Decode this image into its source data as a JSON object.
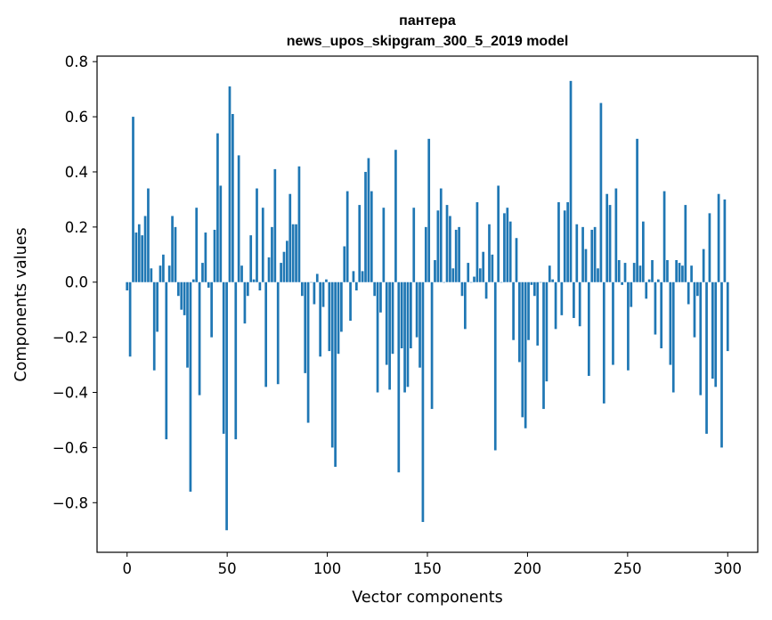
{
  "chart_data": {
    "type": "bar",
    "title_line1": "пантера",
    "title_line2": "news_upos_skipgram_300_5_2019 model",
    "xlabel": "Vector components",
    "ylabel": "Components values",
    "xlim": [
      -15,
      315
    ],
    "ylim": [
      -0.98,
      0.82
    ],
    "xticks": [
      0,
      50,
      100,
      150,
      200,
      250,
      300
    ],
    "xtick_labels": [
      "0",
      "50",
      "100",
      "150",
      "200",
      "250",
      "300"
    ],
    "yticks": [
      -0.8,
      -0.6,
      -0.4,
      -0.2,
      0.0,
      0.2,
      0.4,
      0.6,
      0.8
    ],
    "ytick_labels": [
      "−0.8",
      "−0.6",
      "−0.4",
      "−0.2",
      "0.0",
      "0.2",
      "0.4",
      "0.6",
      "0.8"
    ],
    "bar_color": "#1f77b4",
    "values": [
      -0.03,
      -0.27,
      0.6,
      0.18,
      0.21,
      0.17,
      0.24,
      0.34,
      0.05,
      -0.32,
      -0.18,
      0.06,
      0.1,
      -0.57,
      0.06,
      0.24,
      0.2,
      -0.05,
      -0.1,
      -0.12,
      -0.31,
      -0.76,
      0.01,
      0.27,
      -0.41,
      0.07,
      0.18,
      -0.02,
      -0.2,
      0.19,
      0.54,
      0.35,
      -0.55,
      -0.9,
      0.71,
      0.61,
      -0.57,
      0.46,
      0.06,
      -0.15,
      -0.05,
      0.17,
      0.01,
      0.34,
      -0.03,
      0.27,
      -0.38,
      0.09,
      0.2,
      0.41,
      -0.37,
      0.07,
      0.11,
      0.15,
      0.32,
      0.21,
      0.21,
      0.42,
      -0.05,
      -0.33,
      -0.51,
      0.0,
      -0.08,
      0.03,
      -0.27,
      -0.09,
      0.01,
      -0.25,
      -0.6,
      -0.67,
      -0.26,
      -0.18,
      0.13,
      0.33,
      -0.14,
      0.04,
      -0.03,
      0.28,
      0.04,
      0.4,
      0.45,
      0.33,
      -0.05,
      -0.4,
      -0.11,
      0.27,
      -0.3,
      -0.39,
      -0.26,
      0.48,
      -0.69,
      -0.24,
      -0.4,
      -0.38,
      -0.24,
      0.27,
      -0.2,
      -0.31,
      -0.87,
      0.2,
      0.52,
      -0.46,
      0.08,
      0.26,
      0.34,
      0.0,
      0.28,
      0.24,
      0.05,
      0.19,
      0.2,
      -0.05,
      -0.17,
      0.07,
      0.0,
      0.02,
      0.29,
      0.05,
      0.11,
      -0.06,
      0.21,
      0.1,
      -0.61,
      0.35,
      0.0,
      0.25,
      0.27,
      0.22,
      -0.21,
      0.16,
      -0.29,
      -0.49,
      -0.53,
      -0.21,
      -0.01,
      -0.05,
      -0.23,
      0.0,
      -0.46,
      -0.36,
      0.06,
      0.01,
      -0.17,
      0.29,
      -0.12,
      0.26,
      0.29,
      0.73,
      -0.13,
      0.21,
      -0.16,
      0.2,
      0.12,
      -0.34,
      0.19,
      0.2,
      0.05,
      0.65,
      -0.44,
      0.32,
      0.28,
      -0.3,
      0.34,
      0.08,
      -0.01,
      0.07,
      -0.32,
      -0.09,
      0.07,
      0.52,
      0.06,
      0.22,
      -0.06,
      0.01,
      0.08,
      -0.19,
      0.01,
      -0.24,
      0.33,
      0.08,
      -0.3,
      -0.4,
      0.08,
      0.07,
      0.06,
      0.28,
      -0.08,
      0.06,
      -0.2,
      -0.05,
      -0.41,
      0.12,
      -0.55,
      0.25,
      -0.35,
      -0.38,
      0.32,
      -0.6,
      0.3,
      -0.25
    ]
  }
}
